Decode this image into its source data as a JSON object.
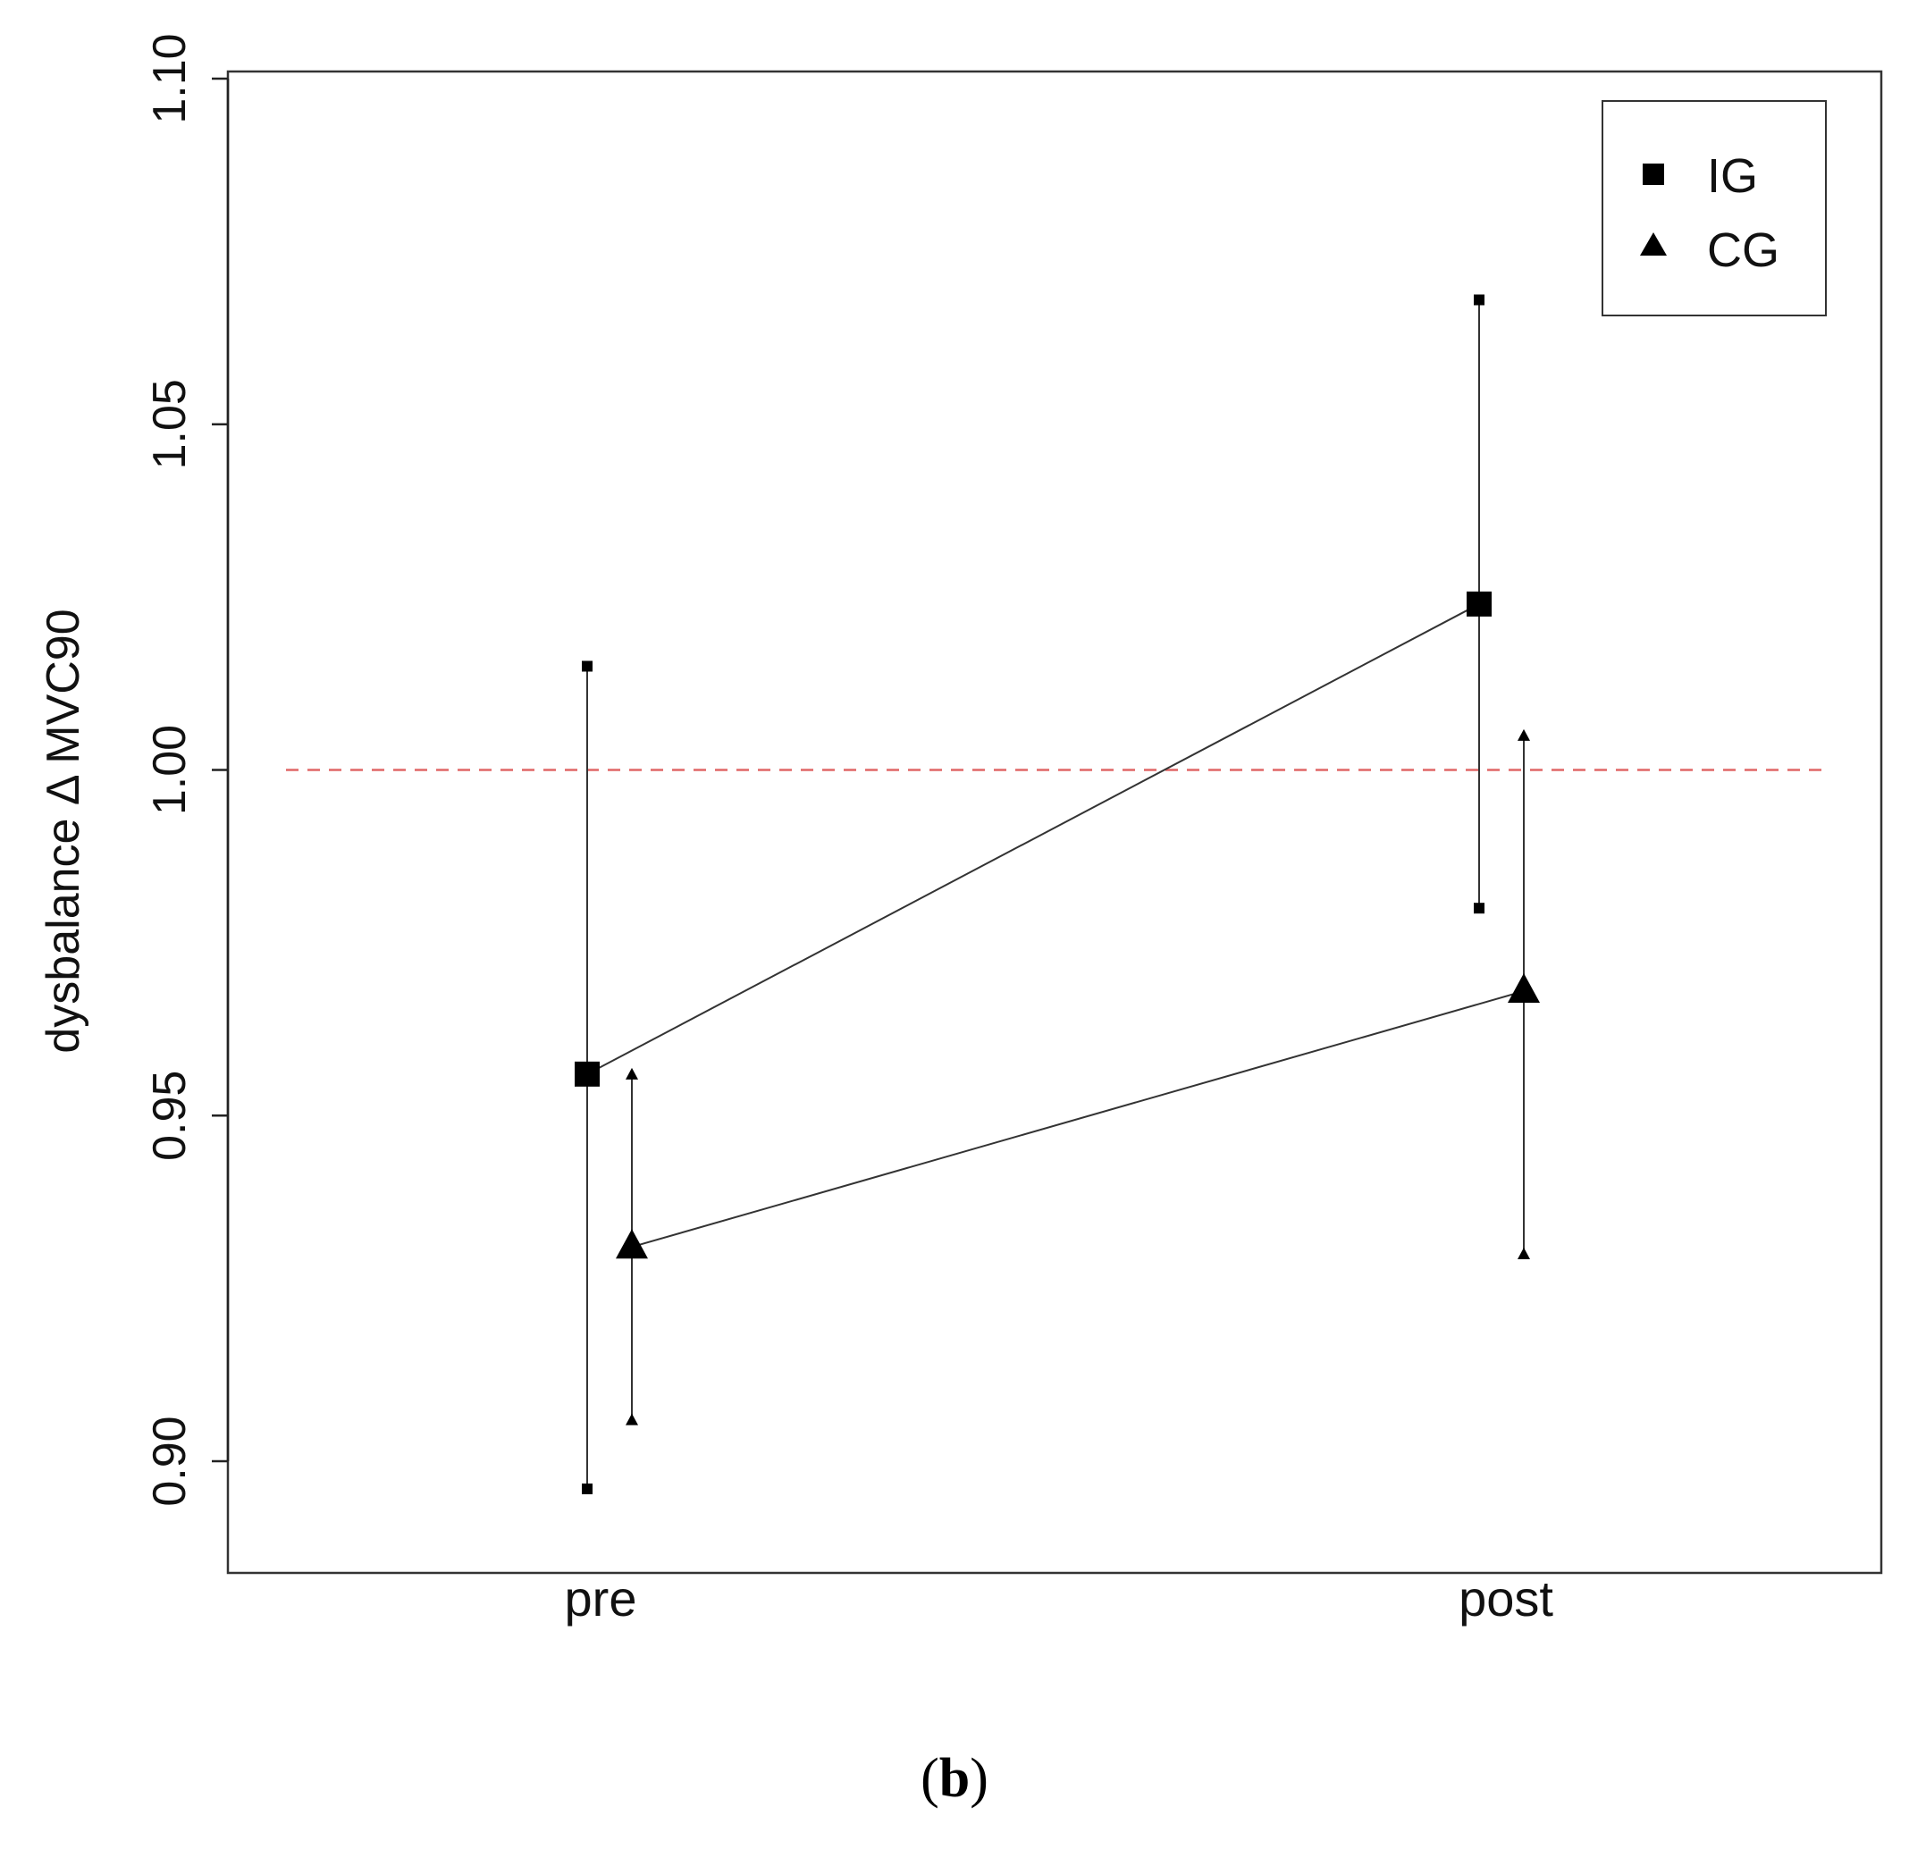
{
  "chart_data": {
    "type": "line",
    "ylabel": "dysbalance  Δ MVC90",
    "xlabel": "",
    "categories": [
      "pre",
      "post"
    ],
    "ylim": [
      0.885,
      1.1
    ],
    "yticks": [
      "0.90",
      "0.95",
      "1.00",
      "1.05",
      "1.10"
    ],
    "yticks_values": [
      0.9,
      0.95,
      1.0,
      1.05,
      1.1
    ],
    "reference_line": {
      "y": 1.0,
      "style": "dashed",
      "color": "#e06666"
    },
    "grid": false,
    "legend": {
      "position": "top-right",
      "entries": [
        "IG",
        "CG"
      ]
    },
    "series": [
      {
        "name": "IG",
        "marker": "square",
        "values": [
          0.956,
          1.024
        ],
        "error_low": [
          0.896,
          0.98
        ],
        "error_high": [
          1.015,
          1.068
        ]
      },
      {
        "name": "CG",
        "marker": "triangle",
        "values": [
          0.931,
          0.968
        ],
        "error_low": [
          0.906,
          0.93
        ],
        "error_high": [
          0.956,
          1.005
        ]
      }
    ]
  },
  "caption": {
    "open": "(",
    "letter": "b",
    "close": ")"
  },
  "colors": {
    "series_line": "#333333",
    "axis": "#222222",
    "reference": "#e06666"
  }
}
